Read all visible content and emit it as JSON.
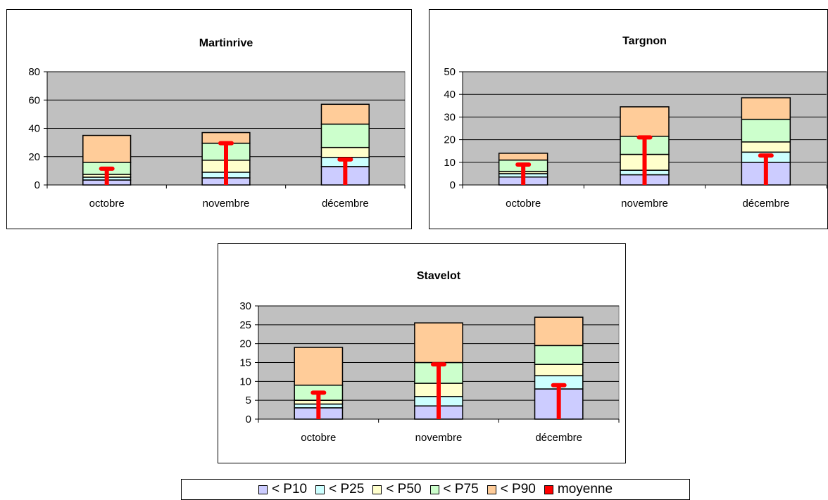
{
  "chart_data": [
    {
      "type": "bar",
      "title": "Martinrive",
      "categories": [
        "octobre",
        "novembre",
        "décembre"
      ],
      "ylim": [
        0,
        80
      ],
      "yticks": [
        0,
        20,
        40,
        60,
        80
      ],
      "stacked_cumulative": true,
      "series": [
        {
          "name": "< P10",
          "values": [
            3.5,
            5,
            13
          ]
        },
        {
          "name": "< P25",
          "values": [
            5.5,
            9,
            19.5
          ]
        },
        {
          "name": "< P50",
          "values": [
            7.5,
            17.5,
            26.5
          ]
        },
        {
          "name": "< P75",
          "values": [
            16,
            29.5,
            43
          ]
        },
        {
          "name": "< P90",
          "values": [
            35,
            37,
            57
          ]
        },
        {
          "name": "moyenne",
          "values": [
            11.5,
            29.5,
            18
          ]
        }
      ],
      "grid": true
    },
    {
      "type": "bar",
      "title": "Targnon",
      "categories": [
        "octobre",
        "novembre",
        "décembre"
      ],
      "ylim": [
        0,
        50
      ],
      "yticks": [
        0,
        10,
        20,
        30,
        40,
        50
      ],
      "stacked_cumulative": true,
      "series": [
        {
          "name": "< P10",
          "values": [
            3.5,
            4.5,
            10
          ]
        },
        {
          "name": "< P25",
          "values": [
            5,
            6.5,
            14.5
          ]
        },
        {
          "name": "< P50",
          "values": [
            6,
            13.5,
            19
          ]
        },
        {
          "name": "< P75",
          "values": [
            11,
            21.5,
            29
          ]
        },
        {
          "name": "< P90",
          "values": [
            14,
            34.5,
            38.5
          ]
        },
        {
          "name": "moyenne",
          "values": [
            9,
            21,
            13
          ]
        }
      ],
      "grid": true
    },
    {
      "type": "bar",
      "title": "Stavelot",
      "categories": [
        "octobre",
        "novembre",
        "décembre"
      ],
      "ylim": [
        0,
        30
      ],
      "yticks": [
        0,
        5,
        10,
        15,
        20,
        25,
        30
      ],
      "stacked_cumulative": true,
      "series": [
        {
          "name": "< P10",
          "values": [
            3,
            3.5,
            8
          ]
        },
        {
          "name": "< P25",
          "values": [
            4,
            6,
            11.5
          ]
        },
        {
          "name": "< P50",
          "values": [
            5,
            9.5,
            14.5
          ]
        },
        {
          "name": "< P75",
          "values": [
            9,
            15,
            19.5
          ]
        },
        {
          "name": "< P90",
          "values": [
            19,
            25.5,
            27
          ]
        },
        {
          "name": "moyenne",
          "values": [
            7,
            14.5,
            9
          ]
        }
      ],
      "grid": true
    }
  ],
  "legend": {
    "placement": "bottom",
    "items": [
      {
        "label": "< P10",
        "color": "#ccccff"
      },
      {
        "label": "< P25",
        "color": "#ccffff"
      },
      {
        "label": "< P50",
        "color": "#ffffcc"
      },
      {
        "label": "< P75",
        "color": "#ccffcc"
      },
      {
        "label": "< P90",
        "color": "#ffcc99"
      },
      {
        "label": "moyenne",
        "color": "#ff0000"
      }
    ]
  },
  "colors": {
    "plot_background": "#c0c0c0",
    "mean_marker": "#ff0000"
  }
}
